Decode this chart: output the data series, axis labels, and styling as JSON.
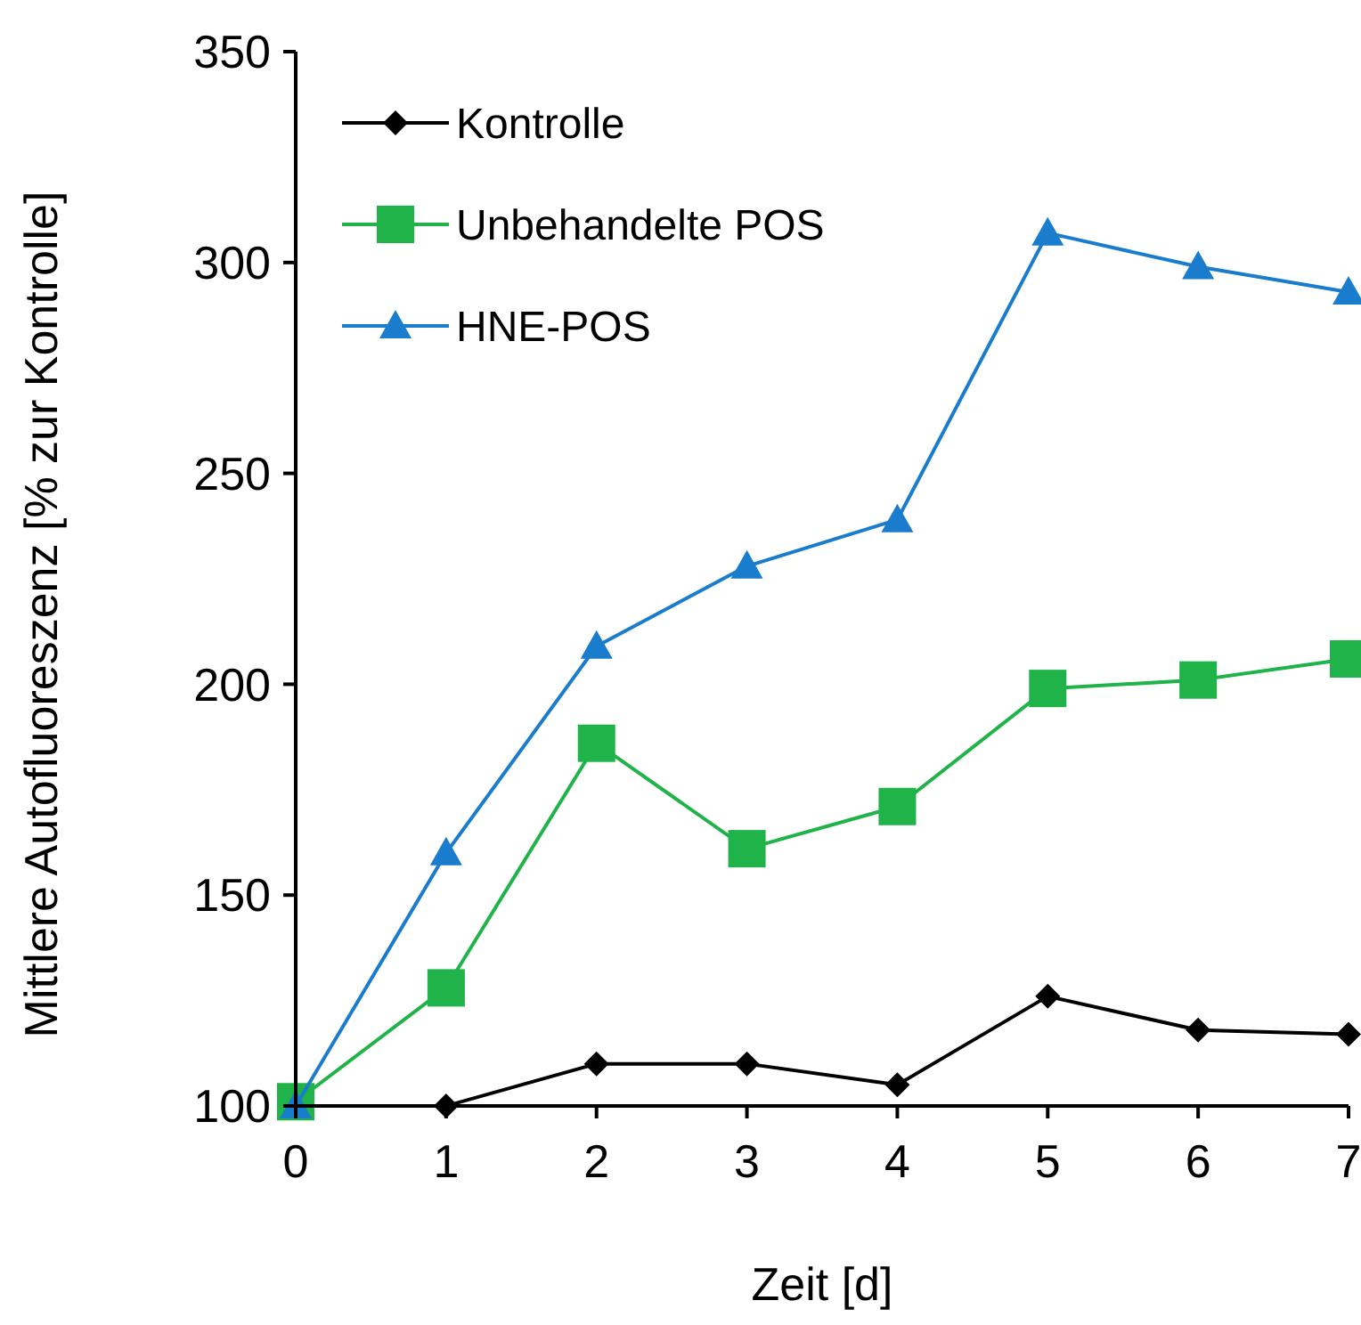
{
  "chart_data": {
    "type": "line",
    "xlabel": "Zeit [d]",
    "ylabel": "Mittlere Autofluoreszenz [% zur Kontrolle]",
    "x": [
      0,
      1,
      2,
      3,
      4,
      5,
      6,
      7
    ],
    "xlim": [
      0,
      7
    ],
    "xticks": [
      0,
      1,
      2,
      3,
      4,
      5,
      6,
      7
    ],
    "ylim": [
      100,
      350
    ],
    "yticks": [
      100,
      150,
      200,
      250,
      300,
      350
    ],
    "grid": false,
    "legend": "top left",
    "series": [
      {
        "name": "Kontrolle",
        "color": "#000000",
        "marker": "diamond",
        "values": [
          100,
          100,
          110,
          110,
          105,
          126,
          118,
          117
        ]
      },
      {
        "name": "Unbehandelte POS",
        "color": "#1fb34a",
        "marker": "square",
        "values": [
          101,
          128,
          186,
          161,
          171,
          199,
          201,
          206
        ]
      },
      {
        "name": "HNE-POS",
        "color": "#1a7ccc",
        "marker": "triangle",
        "values": [
          100,
          160,
          209,
          228,
          239,
          307,
          299,
          293
        ]
      }
    ]
  }
}
